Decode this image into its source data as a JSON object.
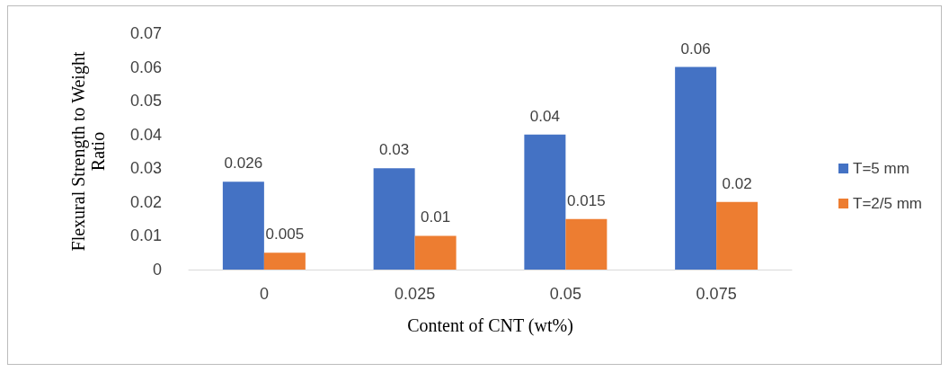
{
  "chart_data": {
    "type": "bar",
    "xlabel": "Content of CNT (wt%)",
    "ylabel": "Flexural Strength to Weight Ratio",
    "categories": [
      "0",
      "0.025",
      "0.05",
      "0.075"
    ],
    "series": [
      {
        "name": "T=5 mm",
        "color": "#4472c4",
        "values": [
          0.026,
          0.03,
          0.04,
          0.06
        ]
      },
      {
        "name": "T=2/5 mm",
        "color": "#ed7d31",
        "values": [
          0.005,
          0.01,
          0.015,
          0.02
        ]
      }
    ],
    "ylim": [
      0,
      0.07
    ],
    "yticks": [
      0,
      0.01,
      0.02,
      0.03,
      0.04,
      0.05,
      0.06,
      0.07
    ],
    "data_labels": true,
    "grid": false,
    "legend": "right"
  }
}
